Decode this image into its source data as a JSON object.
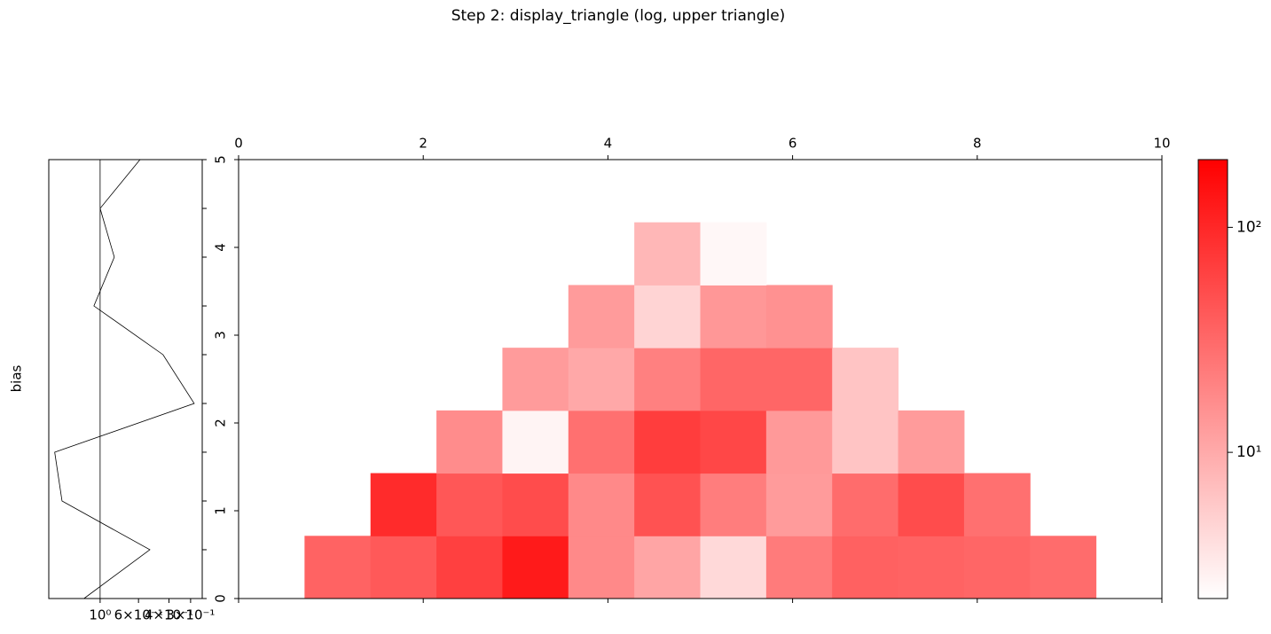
{
  "chart_data": [
    {
      "type": "line",
      "ylabel": "bias",
      "values": [
        0.588,
        1.0,
        0.828,
        1.086,
        0.433,
        0.286,
        1.83,
        1.66,
        0.516,
        1.24
      ],
      "y": [
        5,
        4.444,
        3.889,
        3.333,
        2.778,
        2.222,
        1.667,
        1.111,
        0.556,
        0
      ],
      "xlim": [
        1.98,
        0.257
      ],
      "log_x": true,
      "xticks": [
        {
          "value": 1,
          "label": "10⁰"
        },
        {
          "value": 0.6,
          "label": "6×10⁻¹"
        },
        {
          "value": 0.4,
          "label": "4×10⁻¹"
        },
        {
          "value": 0.3,
          "label": "3×10⁻¹"
        }
      ],
      "ylim": [
        0,
        5
      ],
      "color": "#000000",
      "vline": 1
    },
    {
      "type": "heatmap",
      "title": "Step 2: display_triangle (log, upper triangle)",
      "rows": [
        [
          35,
          42,
          65,
          127,
          18,
          11,
          4.4,
          23,
          36,
          35,
          33,
          30
        ],
        [
          93,
          43,
          52,
          18,
          47,
          22,
          13,
          30,
          52,
          28
        ],
        [
          17,
          2.7,
          28,
          68,
          57,
          13.5,
          6.3,
          13
        ],
        [
          13,
          10.3,
          21,
          33,
          33,
          6.3
        ],
        [
          13,
          4.8,
          14,
          15.5
        ],
        [
          7.9,
          2.6
        ]
      ],
      "xlim": [
        0,
        10
      ],
      "xticks": [
        0,
        2,
        4,
        6,
        8,
        10
      ],
      "ylim": [
        0,
        5
      ],
      "yticks": [
        0,
        1,
        2,
        3,
        4,
        5
      ],
      "colorbar": {
        "clim": [
          2.24,
          200
        ],
        "log": true,
        "cmap": [
          "#ffffff",
          "#ff0000"
        ],
        "ticks": [
          {
            "value": 10,
            "label": "10¹"
          },
          {
            "value": 100,
            "label": "10²"
          }
        ]
      }
    }
  ]
}
